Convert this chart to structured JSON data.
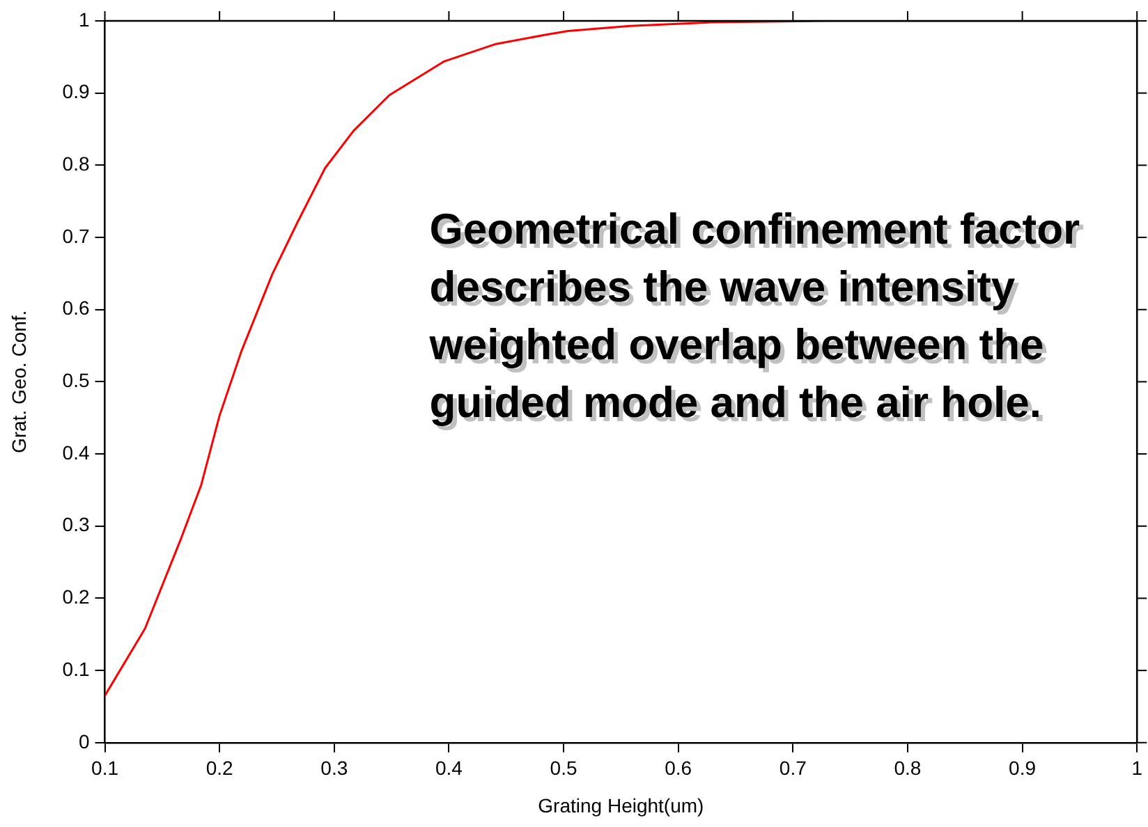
{
  "chart_data": {
    "type": "line",
    "xlabel": "Grating Height(um)",
    "ylabel": "Grat. Geo. Conf.",
    "annotations": [
      "Geometrical confinement factor describes the wave intensity weighted overlap between the guided mode and the air hole."
    ],
    "series": [
      {
        "color": "#ff0000",
        "x": [
          0.1,
          0.135,
          0.166,
          0.184,
          0.2,
          0.219,
          0.246,
          0.268,
          0.292,
          0.317,
          0.348,
          0.396,
          0.441,
          0.485,
          0.504,
          0.558,
          0.628,
          0.731,
          0.85,
          1.0
        ],
        "values": [
          0.065,
          0.158,
          0.281,
          0.357,
          0.453,
          0.542,
          0.649,
          0.721,
          0.796,
          0.848,
          0.897,
          0.944,
          0.968,
          0.981,
          0.986,
          0.993,
          0.998,
          1.0,
          1.0,
          1.0
        ]
      }
    ],
    "xlim": [
      0.1,
      1
    ],
    "xticks": [
      0.1,
      0.2,
      0.3,
      0.4,
      0.5,
      0.6,
      0.7,
      0.8,
      0.9,
      1
    ],
    "ylim": [
      0,
      1
    ],
    "yticks": [
      0,
      0.1,
      0.2,
      0.3,
      0.4,
      0.5,
      0.6,
      0.7,
      0.8,
      0.9,
      1
    ],
    "grid": false,
    "legend": false,
    "marker": "none",
    "line_style": "solid"
  }
}
